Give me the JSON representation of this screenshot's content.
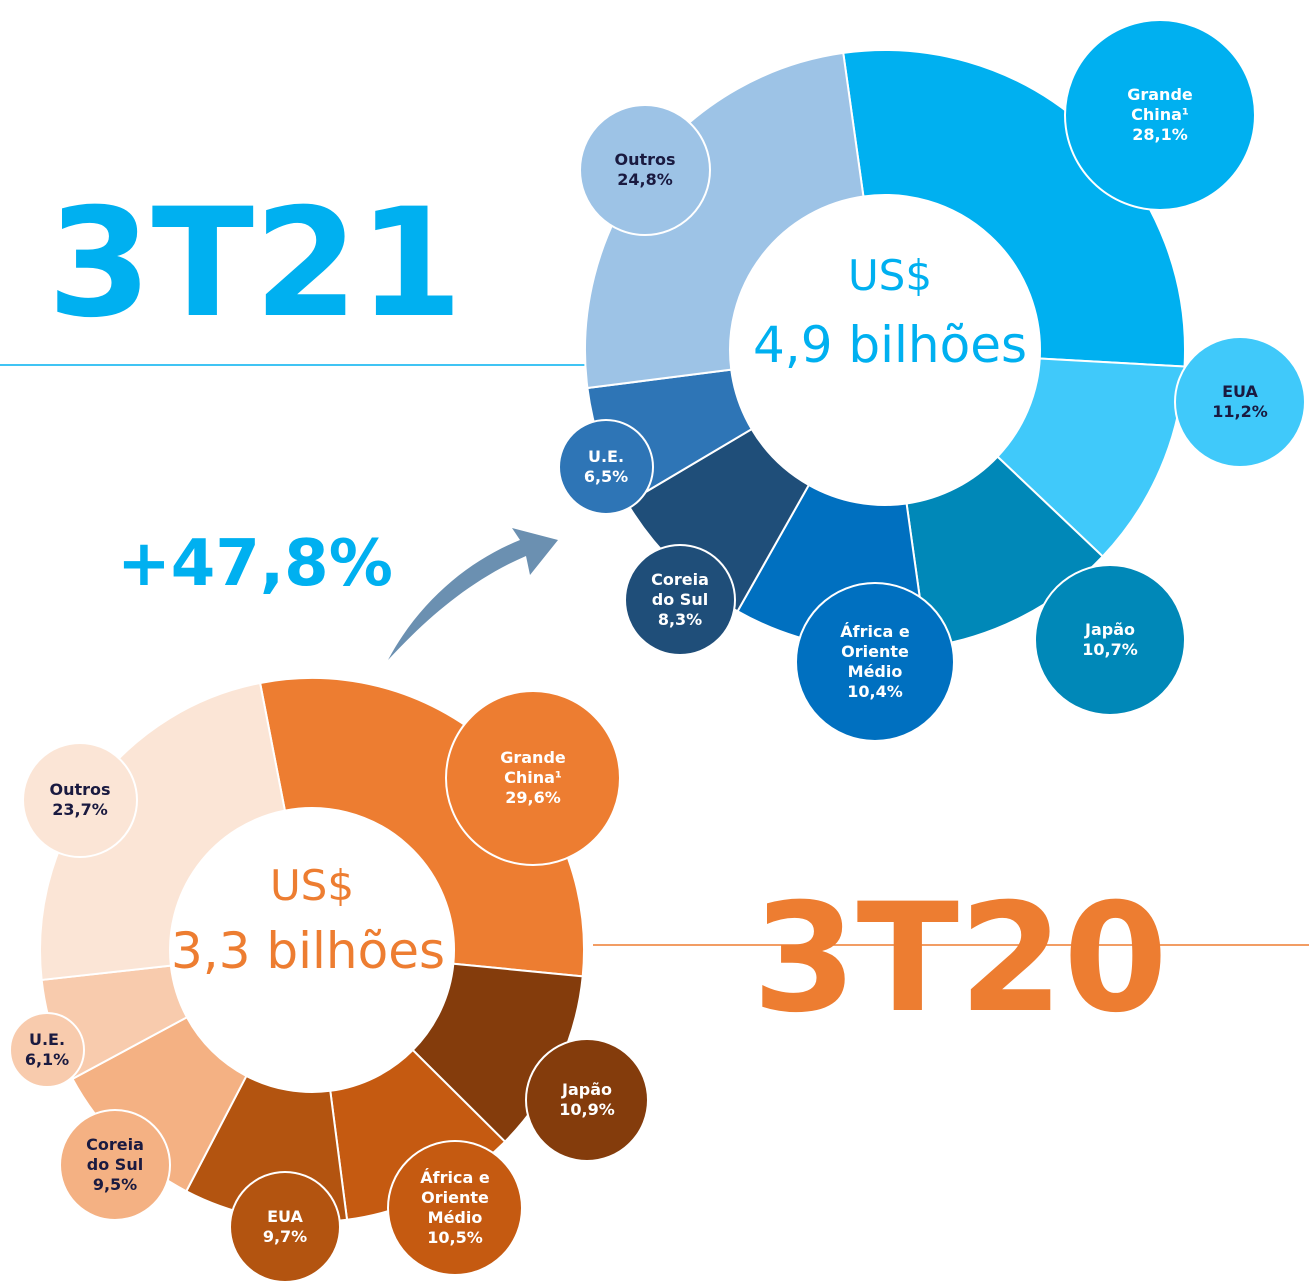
{
  "change_label": "+47,8%",
  "chart_data": [
    {
      "type": "donut",
      "title": "3T21",
      "center_label": "US$",
      "total_label": "4,9 bilhões",
      "categories": [
        "Grande China¹",
        "EUA",
        "Japão",
        "África e Oriente Médio",
        "Coreia do Sul",
        "U.E.",
        "Outros"
      ],
      "values": [
        28.1,
        11.2,
        10.7,
        10.4,
        8.3,
        6.5,
        24.8
      ],
      "value_labels": [
        "28,1%",
        "11,2%",
        "10,7%",
        "10,4%",
        "8,3%",
        "6,5%",
        "24,8%"
      ],
      "colors": [
        "#00b0f0",
        "#40c9fa",
        "#0088b8",
        "#0070c0",
        "#1f4e79",
        "#2e75b6",
        "#9dc3e6"
      ],
      "color": "#00b0f0"
    },
    {
      "type": "donut",
      "title": "3T20",
      "center_label": "US$",
      "total_label": "3,3 bilhões",
      "categories": [
        "Grande China¹",
        "Japão",
        "África e Oriente Médio",
        "EUA",
        "Coreia do Sul",
        "U.E.",
        "Outros"
      ],
      "values": [
        29.6,
        10.9,
        10.5,
        9.7,
        9.5,
        6.1,
        23.7
      ],
      "value_labels": [
        "29,6%",
        "10,9%",
        "10,5%",
        "9,7%",
        "9,5%",
        "6,1%",
        "23,7%"
      ],
      "colors": [
        "#ed7d31",
        "#843c0c",
        "#c55a11",
        "#b35410",
        "#f4b183",
        "#f8cbad",
        "#fbe5d6"
      ],
      "color": "#ed7d31"
    }
  ]
}
